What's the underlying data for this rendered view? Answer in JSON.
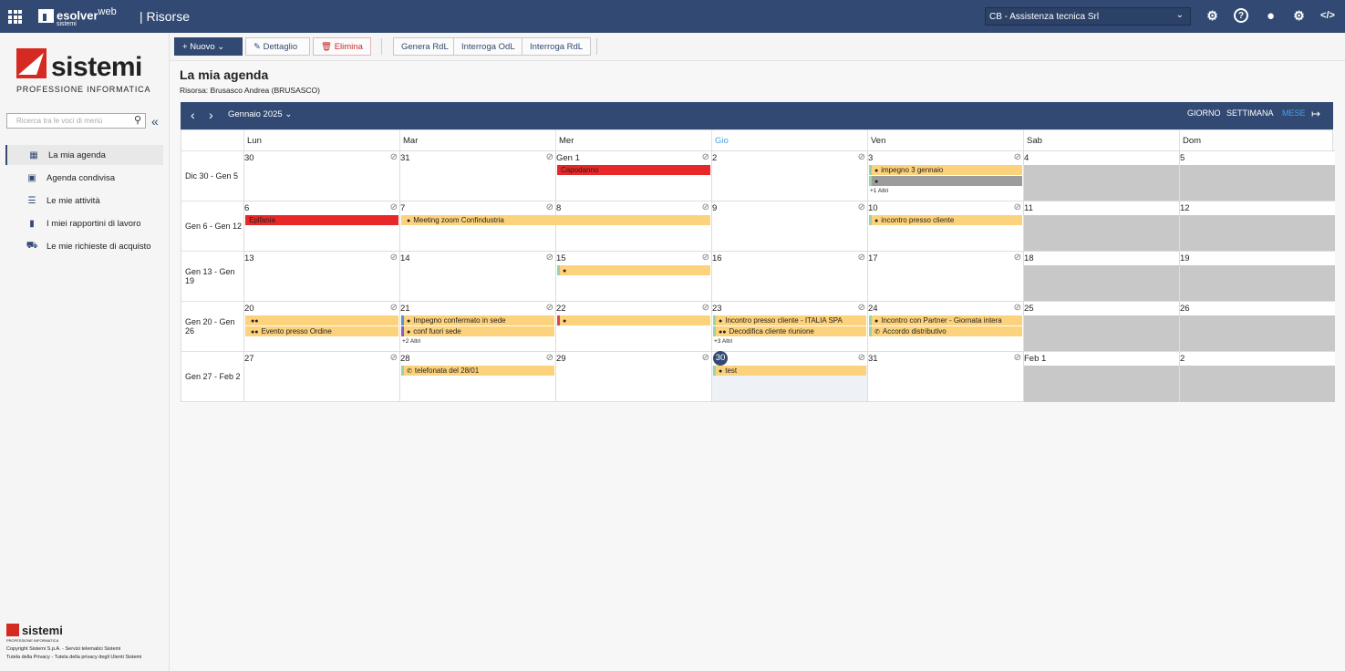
{
  "topbar": {
    "brand": "esolver",
    "brand_suffix": "web",
    "brand_sub": "sistemi",
    "module": "| Risorse",
    "company": "CB - Assistenza tecnica Srl"
  },
  "sidebar": {
    "logo_name": "sistemi",
    "logo_tag": "PROFESSIONE INFORMATICA",
    "search_placeholder": "Ricerca tra le voci di menù",
    "items": [
      {
        "label": "La mia agenda",
        "icon": "calendar-icon"
      },
      {
        "label": "Agenda condivisa",
        "icon": "shared-calendar-icon"
      },
      {
        "label": "Le mie attività",
        "icon": "checklist-icon"
      },
      {
        "label": "I miei rapportini di lavoro",
        "icon": "clipboard-icon"
      },
      {
        "label": "Le mie richieste di acquisto",
        "icon": "cart-icon"
      }
    ],
    "footer_logo": "sistemi",
    "footer_tag": "PROFESSIONE INFORMATICA",
    "footer_line1": "Copyright Sistemi S.p.A. - Servizi telematici Sistemi",
    "footer_line2": "Tutela della Privacy - Tutela della privacy degli Utenti Sistemi"
  },
  "toolbar": {
    "nuovo": "Nuovo",
    "dettaglio": "Dettaglio",
    "elimina": "Elimina",
    "genera": "Genera RdL",
    "interroga_odl": "Interroga OdL",
    "interroga_rdl": "Interroga RdL"
  },
  "page": {
    "title": "La mia agenda",
    "resource": "Risorsa: Brusasco Andrea (BRUSASCO)"
  },
  "calendar": {
    "period": "Gennaio 2025",
    "views": {
      "giorno": "GIORNO",
      "settimana": "SETTIMANA",
      "mese": "MESE"
    },
    "colors": {
      "header": "#324a73",
      "event": "#fdd27c",
      "holiday": "#e82828",
      "weekend": "#c8c8c8",
      "active_view": "#4a9fe0"
    },
    "dow": [
      "Lun",
      "Mar",
      "Mer",
      "Gio",
      "Ven",
      "Sab",
      "Dom"
    ],
    "today_dow": "Gio",
    "weeks": [
      {
        "label": "Dic 30 - Gen 5",
        "days": [
          {
            "num": "30",
            "events": []
          },
          {
            "num": "31",
            "events": []
          },
          {
            "num": "Gen 1",
            "events": [
              {
                "text": "Capodanno",
                "color": "red"
              }
            ]
          },
          {
            "num": "2",
            "events": []
          },
          {
            "num": "3",
            "events": [
              {
                "text": "impegno 3 gennaio",
                "icon": "person",
                "bar": "#9bd3a8"
              },
              {
                "text": "",
                "icon": "dot",
                "color": "gray",
                "bar": "#9bd3a8"
              }
            ],
            "more": "+1 Altri"
          },
          {
            "num": "4",
            "weekend": true,
            "events": []
          },
          {
            "num": "5",
            "weekend": true,
            "events": []
          }
        ]
      },
      {
        "label": "Gen 6 - Gen 12",
        "days": [
          {
            "num": "6",
            "events": [
              {
                "text": "Epifania",
                "color": "red"
              }
            ]
          },
          {
            "num": "7",
            "events": [
              {
                "text": "Meeting zoom Confindustria",
                "icon": "person",
                "span": 2
              }
            ]
          },
          {
            "num": "8",
            "events": []
          },
          {
            "num": "9",
            "events": []
          },
          {
            "num": "10",
            "events": [
              {
                "text": "incontro presso cliente",
                "icon": "person",
                "bar": "#9bd3a8"
              }
            ]
          },
          {
            "num": "11",
            "weekend": true,
            "events": []
          },
          {
            "num": "12",
            "weekend": true,
            "events": []
          }
        ]
      },
      {
        "label": "Gen 13 - Gen 19",
        "days": [
          {
            "num": "13",
            "events": []
          },
          {
            "num": "14",
            "events": []
          },
          {
            "num": "15",
            "events": [
              {
                "text": "",
                "icon": "person",
                "bar": "#9bd3a8"
              }
            ]
          },
          {
            "num": "16",
            "events": []
          },
          {
            "num": "17",
            "events": []
          },
          {
            "num": "18",
            "weekend": true,
            "events": []
          },
          {
            "num": "19",
            "weekend": true,
            "events": []
          }
        ]
      },
      {
        "label": "Gen 20 - Gen 26",
        "days": [
          {
            "num": "20",
            "events": [
              {
                "text": "",
                "icon": "group"
              },
              {
                "text": "Evento presso Ordine",
                "icon": "group"
              }
            ]
          },
          {
            "num": "21",
            "events": [
              {
                "text": "Impegno confermato in sede",
                "icon": "person",
                "bar": "#5b8fd6"
              },
              {
                "text": "conf fuori sede",
                "icon": "person",
                "bar": "#8a5bc2"
              }
            ],
            "more": "+2 Altri"
          },
          {
            "num": "22",
            "events": [
              {
                "text": "",
                "icon": "person",
                "bar": "#e0444a"
              }
            ]
          },
          {
            "num": "23",
            "events": [
              {
                "text": "Incontro presso cliente - ITALIA SPA",
                "icon": "person",
                "bar": "#9bd3a8"
              },
              {
                "text": "Decodifica cliente riunione",
                "icon": "group",
                "bar": "#9bd3a8"
              }
            ],
            "more": "+3 Altri"
          },
          {
            "num": "24",
            "events": [
              {
                "text": "Incontro con Partner - Giornata intera",
                "icon": "person",
                "bar": "#9bd3a8"
              },
              {
                "text": "Accordo distributivo",
                "icon": "phone",
                "bar": "#9bd3a8"
              }
            ]
          },
          {
            "num": "25",
            "weekend": true,
            "events": []
          },
          {
            "num": "26",
            "weekend": true,
            "events": []
          }
        ]
      },
      {
        "label": "Gen 27 - Feb 2",
        "days": [
          {
            "num": "27",
            "events": []
          },
          {
            "num": "28",
            "events": [
              {
                "text": "telefonata del 28/01",
                "icon": "phone",
                "bar": "#9bd3a8"
              }
            ]
          },
          {
            "num": "29",
            "events": []
          },
          {
            "num": "30",
            "today": true,
            "events": [
              {
                "text": "test",
                "icon": "person",
                "bar": "#9bd3a8"
              }
            ]
          },
          {
            "num": "31",
            "events": []
          },
          {
            "num": "Feb 1",
            "weekend": true,
            "events": []
          },
          {
            "num": "2",
            "weekend": true,
            "events": []
          }
        ]
      }
    ]
  }
}
